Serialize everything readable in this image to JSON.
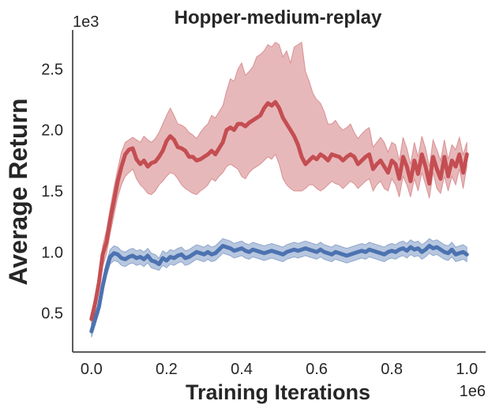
{
  "chart_data": {
    "type": "line",
    "title": "Hopper-medium-replay",
    "xlabel": "Training Iterations",
    "ylabel": "Average Return",
    "x_offset_label": "1e6",
    "y_offset_label": "1e3",
    "xlim": [
      -0.05,
      1.05
    ],
    "ylim": [
      0.18,
      2.82
    ],
    "xticks": [
      0.0,
      0.2,
      0.4,
      0.6,
      0.8,
      1.0
    ],
    "xtick_labels": [
      "0.0",
      "0.2",
      "0.4",
      "0.6",
      "0.8",
      "1.0"
    ],
    "yticks": [
      0.5,
      1.0,
      1.5,
      2.0,
      2.5
    ],
    "ytick_labels": [
      "0.5",
      "1.0",
      "1.5",
      "2.0",
      "2.5"
    ],
    "grid": false,
    "legend": "none",
    "series": [
      {
        "color": "#c44e52",
        "x": [
          0.0,
          0.01,
          0.02,
          0.03,
          0.04,
          0.05,
          0.06,
          0.07,
          0.08,
          0.09,
          0.1,
          0.11,
          0.12,
          0.13,
          0.14,
          0.15,
          0.16,
          0.17,
          0.18,
          0.19,
          0.2,
          0.21,
          0.22,
          0.23,
          0.24,
          0.25,
          0.26,
          0.27,
          0.28,
          0.29,
          0.3,
          0.31,
          0.32,
          0.33,
          0.34,
          0.35,
          0.36,
          0.37,
          0.38,
          0.39,
          0.4,
          0.41,
          0.42,
          0.43,
          0.44,
          0.45,
          0.46,
          0.47,
          0.48,
          0.49,
          0.5,
          0.51,
          0.52,
          0.53,
          0.54,
          0.55,
          0.56,
          0.57,
          0.58,
          0.59,
          0.6,
          0.61,
          0.62,
          0.63,
          0.64,
          0.65,
          0.66,
          0.67,
          0.68,
          0.69,
          0.7,
          0.71,
          0.72,
          0.73,
          0.74,
          0.75,
          0.76,
          0.77,
          0.78,
          0.79,
          0.8,
          0.81,
          0.82,
          0.83,
          0.84,
          0.85,
          0.86,
          0.87,
          0.88,
          0.89,
          0.9,
          0.91,
          0.92,
          0.93,
          0.94,
          0.95,
          0.96,
          0.97,
          0.98,
          0.99,
          1.0
        ],
        "y": [
          0.45,
          0.58,
          0.75,
          0.98,
          1.08,
          1.26,
          1.42,
          1.58,
          1.7,
          1.8,
          1.84,
          1.85,
          1.76,
          1.72,
          1.75,
          1.7,
          1.73,
          1.74,
          1.78,
          1.83,
          1.91,
          1.95,
          1.92,
          1.86,
          1.85,
          1.83,
          1.78,
          1.78,
          1.75,
          1.76,
          1.78,
          1.8,
          1.83,
          1.8,
          1.85,
          1.9,
          2.0,
          2.02,
          2.0,
          2.05,
          2.05,
          2.03,
          2.06,
          2.08,
          2.1,
          2.12,
          2.18,
          2.22,
          2.2,
          2.23,
          2.18,
          2.1,
          2.05,
          2.0,
          1.95,
          1.88,
          1.78,
          1.72,
          1.75,
          1.78,
          1.76,
          1.8,
          1.78,
          1.75,
          1.8,
          1.79,
          1.78,
          1.75,
          1.78,
          1.8,
          1.78,
          1.72,
          1.75,
          1.78,
          1.8,
          1.68,
          1.72,
          1.75,
          1.7,
          1.65,
          1.75,
          1.72,
          1.6,
          1.78,
          1.7,
          1.58,
          1.75,
          1.64,
          1.8,
          1.7,
          1.56,
          1.78,
          1.68,
          1.6,
          1.78,
          1.62,
          1.75,
          1.7,
          1.8,
          1.65,
          1.8
        ],
        "lower": [
          0.4,
          0.52,
          0.68,
          0.88,
          0.98,
          1.15,
          1.3,
          1.45,
          1.55,
          1.62,
          1.65,
          1.68,
          1.6,
          1.55,
          1.52,
          1.48,
          1.47,
          1.5,
          1.55,
          1.58,
          1.62,
          1.65,
          1.64,
          1.6,
          1.55,
          1.52,
          1.5,
          1.48,
          1.47,
          1.5,
          1.52,
          1.55,
          1.6,
          1.58,
          1.62,
          1.65,
          1.7,
          1.72,
          1.7,
          1.68,
          1.62,
          1.6,
          1.65,
          1.68,
          1.7,
          1.72,
          1.75,
          1.78,
          1.76,
          1.8,
          1.72,
          1.6,
          1.55,
          1.52,
          1.5,
          1.5,
          1.5,
          1.52,
          1.55,
          1.55,
          1.52,
          1.5,
          1.52,
          1.55,
          1.58,
          1.56,
          1.55,
          1.52,
          1.55,
          1.58,
          1.56,
          1.52,
          1.55,
          1.58,
          1.6,
          1.5,
          1.55,
          1.58,
          1.52,
          1.5,
          1.6,
          1.55,
          1.45,
          1.62,
          1.55,
          1.45,
          1.6,
          1.5,
          1.65,
          1.55,
          1.44,
          1.65,
          1.52,
          1.48,
          1.62,
          1.5,
          1.62,
          1.55,
          1.68,
          1.52,
          1.7
        ],
        "upper": [
          0.5,
          0.64,
          0.82,
          1.05,
          1.18,
          1.36,
          1.53,
          1.68,
          1.82,
          1.9,
          1.92,
          1.94,
          1.92,
          1.9,
          1.95,
          1.92,
          1.9,
          1.93,
          1.98,
          2.05,
          2.12,
          2.18,
          2.12,
          2.05,
          2.04,
          2.02,
          1.98,
          1.96,
          1.93,
          1.98,
          2.02,
          2.05,
          2.12,
          2.1,
          2.15,
          2.2,
          2.32,
          2.42,
          2.4,
          2.5,
          2.55,
          2.45,
          2.48,
          2.52,
          2.6,
          2.62,
          2.65,
          2.7,
          2.68,
          2.72,
          2.7,
          2.6,
          2.65,
          2.55,
          2.68,
          2.7,
          2.72,
          2.48,
          2.4,
          2.3,
          2.25,
          2.22,
          2.15,
          2.05,
          2.05,
          2.08,
          2.03,
          2.0,
          2.02,
          2.05,
          1.98,
          1.93,
          1.97,
          2.0,
          2.02,
          1.86,
          1.9,
          1.94,
          1.9,
          1.82,
          1.9,
          1.88,
          1.75,
          1.94,
          1.85,
          1.72,
          1.9,
          1.78,
          1.95,
          1.85,
          1.7,
          1.92,
          1.84,
          1.75,
          1.92,
          1.76,
          1.88,
          1.84,
          1.94,
          1.8,
          1.9
        ]
      },
      {
        "color": "#4c72b0",
        "x": [
          0.0,
          0.01,
          0.02,
          0.03,
          0.04,
          0.05,
          0.06,
          0.07,
          0.08,
          0.09,
          0.1,
          0.11,
          0.12,
          0.13,
          0.14,
          0.15,
          0.16,
          0.17,
          0.18,
          0.19,
          0.2,
          0.21,
          0.22,
          0.23,
          0.24,
          0.25,
          0.26,
          0.27,
          0.28,
          0.29,
          0.3,
          0.31,
          0.32,
          0.33,
          0.34,
          0.35,
          0.36,
          0.37,
          0.38,
          0.39,
          0.4,
          0.41,
          0.42,
          0.43,
          0.44,
          0.45,
          0.46,
          0.47,
          0.48,
          0.49,
          0.5,
          0.51,
          0.52,
          0.53,
          0.54,
          0.55,
          0.56,
          0.57,
          0.58,
          0.59,
          0.6,
          0.61,
          0.62,
          0.63,
          0.64,
          0.65,
          0.66,
          0.67,
          0.68,
          0.69,
          0.7,
          0.71,
          0.72,
          0.73,
          0.74,
          0.75,
          0.76,
          0.77,
          0.78,
          0.79,
          0.8,
          0.81,
          0.82,
          0.83,
          0.84,
          0.85,
          0.86,
          0.87,
          0.88,
          0.89,
          0.9,
          0.91,
          0.92,
          0.93,
          0.94,
          0.95,
          0.96,
          0.97,
          0.98,
          0.99,
          1.0
        ],
        "y": [
          0.35,
          0.45,
          0.55,
          0.72,
          0.86,
          0.96,
          0.99,
          0.98,
          0.95,
          0.94,
          0.96,
          0.97,
          0.95,
          0.96,
          0.94,
          0.97,
          0.93,
          0.92,
          0.9,
          0.95,
          0.93,
          0.96,
          0.95,
          0.97,
          0.98,
          0.95,
          0.96,
          0.98,
          1.0,
          0.99,
          0.98,
          1.0,
          0.98,
          0.99,
          1.02,
          1.05,
          1.04,
          1.03,
          1.01,
          1.02,
          1.03,
          1.01,
          1.0,
          1.02,
          1.01,
          1.0,
          0.99,
          1.0,
          1.01,
          1.0,
          0.99,
          0.98,
          1.0,
          1.01,
          1.02,
          1.01,
          1.02,
          1.03,
          1.02,
          1.01,
          1.0,
          1.02,
          1.0,
          0.99,
          0.98,
          1.0,
          0.99,
          0.98,
          0.97,
          0.98,
          0.99,
          1.0,
          1.01,
          1.0,
          1.02,
          1.01,
          1.0,
          0.99,
          0.98,
          1.0,
          1.01,
          1.0,
          1.02,
          1.03,
          1.01,
          1.04,
          1.02,
          1.03,
          1.0,
          1.02,
          1.05,
          1.03,
          1.04,
          1.02,
          1.0,
          0.99,
          1.02,
          0.98,
          0.99,
          1.0,
          0.98
        ],
        "lower": [
          0.3,
          0.4,
          0.5,
          0.66,
          0.8,
          0.9,
          0.93,
          0.92,
          0.89,
          0.88,
          0.9,
          0.91,
          0.89,
          0.9,
          0.88,
          0.91,
          0.87,
          0.86,
          0.85,
          0.89,
          0.87,
          0.9,
          0.89,
          0.91,
          0.92,
          0.89,
          0.9,
          0.92,
          0.94,
          0.93,
          0.92,
          0.94,
          0.92,
          0.93,
          0.96,
          0.99,
          0.98,
          0.97,
          0.95,
          0.96,
          0.97,
          0.95,
          0.94,
          0.96,
          0.95,
          0.94,
          0.93,
          0.94,
          0.95,
          0.94,
          0.93,
          0.92,
          0.94,
          0.95,
          0.96,
          0.95,
          0.96,
          0.97,
          0.96,
          0.95,
          0.94,
          0.96,
          0.94,
          0.93,
          0.92,
          0.94,
          0.93,
          0.92,
          0.91,
          0.92,
          0.93,
          0.94,
          0.95,
          0.94,
          0.96,
          0.95,
          0.94,
          0.93,
          0.92,
          0.94,
          0.95,
          0.94,
          0.96,
          0.97,
          0.95,
          0.98,
          0.96,
          0.97,
          0.94,
          0.96,
          0.99,
          0.97,
          0.98,
          0.96,
          0.94,
          0.93,
          0.96,
          0.92,
          0.93,
          0.94,
          0.92
        ],
        "upper": [
          0.4,
          0.5,
          0.6,
          0.78,
          0.92,
          1.02,
          1.05,
          1.04,
          1.01,
          1.0,
          1.02,
          1.03,
          1.01,
          1.02,
          1.0,
          1.03,
          0.99,
          0.98,
          0.95,
          1.01,
          0.99,
          1.02,
          1.01,
          1.03,
          1.04,
          1.01,
          1.02,
          1.04,
          1.06,
          1.05,
          1.04,
          1.06,
          1.04,
          1.05,
          1.08,
          1.11,
          1.1,
          1.09,
          1.07,
          1.08,
          1.09,
          1.07,
          1.06,
          1.08,
          1.07,
          1.06,
          1.05,
          1.06,
          1.07,
          1.06,
          1.05,
          1.04,
          1.06,
          1.07,
          1.08,
          1.07,
          1.08,
          1.09,
          1.08,
          1.07,
          1.06,
          1.08,
          1.06,
          1.05,
          1.04,
          1.06,
          1.05,
          1.04,
          1.03,
          1.04,
          1.05,
          1.06,
          1.07,
          1.06,
          1.08,
          1.07,
          1.06,
          1.05,
          1.04,
          1.06,
          1.07,
          1.06,
          1.08,
          1.09,
          1.07,
          1.1,
          1.08,
          1.09,
          1.06,
          1.08,
          1.11,
          1.09,
          1.1,
          1.08,
          1.06,
          1.05,
          1.08,
          1.04,
          1.05,
          1.06,
          1.04
        ]
      }
    ]
  }
}
